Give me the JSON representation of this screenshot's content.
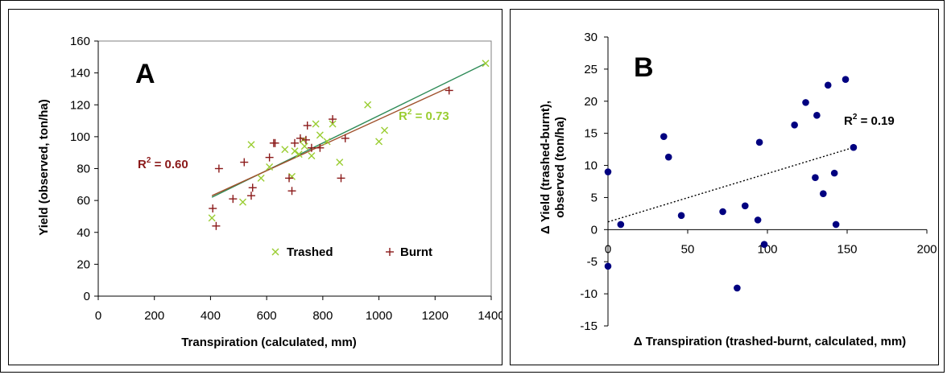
{
  "chart_data": [
    {
      "type": "scatter",
      "panel_label": "A",
      "xlabel": "Transpiration (calculated, mm)",
      "ylabel": "Yield (observed, ton/ha)",
      "xlim": [
        0,
        1400
      ],
      "ylim": [
        0,
        160
      ],
      "xticks": [
        "0",
        "200",
        "400",
        "600",
        "800",
        "1000",
        "1200",
        "1400"
      ],
      "yticks": [
        "0",
        "20",
        "40",
        "60",
        "80",
        "100",
        "120",
        "140",
        "160"
      ],
      "xtick_values": [
        0,
        200,
        400,
        600,
        800,
        1000,
        1200,
        1400
      ],
      "ytick_values": [
        0,
        20,
        40,
        60,
        80,
        100,
        120,
        140,
        160
      ],
      "grid": false,
      "legend_position": "bottom-right",
      "series": [
        {
          "name": "Trashed",
          "marker": "x",
          "color": "#9acd32",
          "points": [
            [
              405,
              49
            ],
            [
              515,
              59
            ],
            [
              545,
              95
            ],
            [
              580,
              74
            ],
            [
              610,
              81
            ],
            [
              665,
              92
            ],
            [
              690,
              75
            ],
            [
              700,
              91
            ],
            [
              715,
              89
            ],
            [
              730,
              98
            ],
            [
              735,
              94
            ],
            [
              760,
              88
            ],
            [
              775,
              108
            ],
            [
              790,
              101
            ],
            [
              815,
              97
            ],
            [
              835,
              108
            ],
            [
              860,
              84
            ],
            [
              960,
              120
            ],
            [
              1000,
              97
            ],
            [
              1020,
              104
            ],
            [
              1380,
              146
            ]
          ],
          "fit": {
            "x": [
              405,
              1380
            ],
            "y": [
              62,
              146
            ],
            "color": "#2e8b57"
          },
          "r2": "0.73"
        },
        {
          "name": "Burnt",
          "marker": "+",
          "color": "#8b1a1a",
          "points": [
            [
              408,
              55
            ],
            [
              420,
              44
            ],
            [
              430,
              80
            ],
            [
              480,
              61
            ],
            [
              520,
              84
            ],
            [
              545,
              63
            ],
            [
              550,
              68
            ],
            [
              610,
              87
            ],
            [
              625,
              96
            ],
            [
              630,
              96
            ],
            [
              680,
              74
            ],
            [
              690,
              66
            ],
            [
              700,
              96
            ],
            [
              720,
              99
            ],
            [
              740,
              98
            ],
            [
              745,
              107
            ],
            [
              760,
              93
            ],
            [
              790,
              93
            ],
            [
              835,
              111
            ],
            [
              865,
              74
            ],
            [
              880,
              99
            ],
            [
              1250,
              129
            ]
          ],
          "fit": {
            "x": [
              405,
              1250
            ],
            "y": [
              63,
              131
            ],
            "color": "#a0522d"
          },
          "r2": "0.60"
        }
      ],
      "annotations": [
        {
          "text": "R² = 0.73",
          "color": "#9acd32"
        },
        {
          "text": "R² = 0.60",
          "color": "#8b1a1a"
        }
      ]
    },
    {
      "type": "scatter",
      "panel_label": "B",
      "xlabel": "Δ Transpiration (trashed-burnt, calculated, mm)",
      "ylabel_line1": "Δ Yield (trashed-burnt),",
      "ylabel_line2": "observed (ton/ha)",
      "xlim": [
        0,
        200
      ],
      "ylim": [
        -15,
        30
      ],
      "xticks": [
        "0",
        "50",
        "100",
        "150",
        "200"
      ],
      "yticks": [
        "-15",
        "-10",
        "-5",
        "0",
        "5",
        "10",
        "15",
        "20",
        "25",
        "30"
      ],
      "xtick_values": [
        0,
        50,
        100,
        150,
        200
      ],
      "ytick_values": [
        -15,
        -10,
        -5,
        0,
        5,
        10,
        15,
        20,
        25,
        30
      ],
      "grid": false,
      "series": [
        {
          "name": "",
          "marker": "circle",
          "color": "#000080",
          "points": [
            [
              0,
              9
            ],
            [
              0,
              -5.7
            ],
            [
              8,
              0.8
            ],
            [
              35,
              14.5
            ],
            [
              38,
              11.3
            ],
            [
              46,
              2.2
            ],
            [
              72,
              2.8
            ],
            [
              86,
              3.7
            ],
            [
              94,
              1.5
            ],
            [
              95,
              13.6
            ],
            [
              98,
              -2.3
            ],
            [
              117,
              16.3
            ],
            [
              124,
              19.8
            ],
            [
              130,
              8.1
            ],
            [
              131,
              17.8
            ],
            [
              135,
              5.6
            ],
            [
              138,
              22.5
            ],
            [
              142,
              8.8
            ],
            [
              143,
              0.8
            ],
            [
              149,
              23.4
            ],
            [
              154,
              12.8
            ],
            [
              81,
              -9.1
            ]
          ],
          "fit": {
            "x": [
              0,
              154
            ],
            "y": [
              1.2,
              12.8
            ],
            "style": "dotted"
          },
          "r2": "0.19"
        }
      ],
      "annotations": [
        {
          "text": "R² = 0.19",
          "color": "#000000"
        }
      ]
    }
  ],
  "panel_a": {
    "label": "A",
    "xlabel": "Transpiration (calculated, mm)",
    "ylabel": "Yield (observed, ton/ha)",
    "r2_trashed_prefix": "R",
    "r2_trashed_sup": "2",
    "r2_trashed_value": " = 0.73",
    "r2_burnt_prefix": "R",
    "r2_burnt_sup": "2",
    "r2_burnt_value": " = 0.60",
    "legend_trashed": "Trashed",
    "legend_burnt": "Burnt"
  },
  "panel_b": {
    "label": "B",
    "xlabel": "Δ Transpiration (trashed-burnt, calculated, mm)",
    "ylabel_line1": "Δ Yield (trashed-burnt),",
    "ylabel_line2": "observed (ton/ha)",
    "r2_prefix": "R",
    "r2_sup": "2",
    "r2_value": " = 0.19"
  }
}
